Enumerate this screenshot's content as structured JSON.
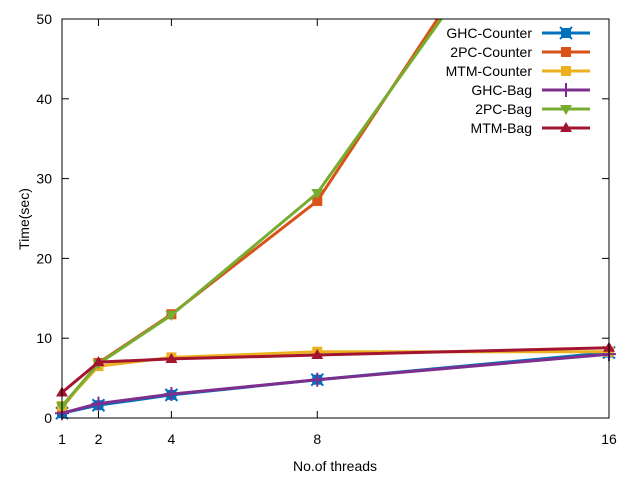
{
  "chart_data": {
    "type": "line",
    "title": "",
    "xlabel": "No.of threads",
    "ylabel": "Time(sec)",
    "xlim": [
      1,
      16
    ],
    "ylim": [
      0,
      50
    ],
    "xticks": [
      1,
      2,
      4,
      8,
      16
    ],
    "yticks": [
      0,
      10,
      20,
      30,
      40,
      50
    ],
    "grid": false,
    "legend_position": "top-right",
    "series": [
      {
        "name": "GHC-Counter",
        "color": "#0072bd",
        "marker": "x-square",
        "x": [
          1,
          2,
          4,
          8,
          16
        ],
        "y": [
          0.6,
          1.6,
          2.9,
          4.8,
          8.2
        ]
      },
      {
        "name": "2PC-Counter",
        "color": "#d95319",
        "marker": "square",
        "x": [
          1,
          2,
          4,
          8,
          11.3
        ],
        "y": [
          1.3,
          6.9,
          13.0,
          27.2,
          50
        ]
      },
      {
        "name": "MTM-Counter",
        "color": "#edb120",
        "marker": "square",
        "x": [
          1,
          2,
          4,
          8,
          16
        ],
        "y": [
          1.5,
          6.5,
          7.6,
          8.3,
          8.3
        ]
      },
      {
        "name": "GHC-Bag",
        "color": "#7e2f8e",
        "marker": "plus",
        "x": [
          1,
          2,
          4,
          8,
          16
        ],
        "y": [
          0.6,
          1.8,
          3.0,
          4.8,
          8.0
        ]
      },
      {
        "name": "2PC-Bag",
        "color": "#77ac30",
        "marker": "triangle-down",
        "x": [
          1,
          2,
          4,
          8,
          11.4
        ],
        "y": [
          1.5,
          6.8,
          12.9,
          28.2,
          50
        ]
      },
      {
        "name": "MTM-Bag",
        "color": "#a2142f",
        "marker": "triangle-up",
        "x": [
          1,
          2,
          4,
          8,
          16
        ],
        "y": [
          3.2,
          7.0,
          7.4,
          7.9,
          8.8
        ]
      }
    ]
  }
}
